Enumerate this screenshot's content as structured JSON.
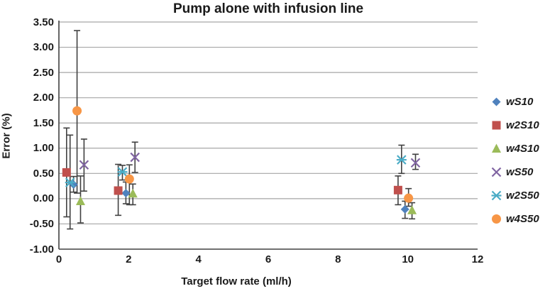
{
  "chart_data": {
    "type": "scatter",
    "title": "Pump alone with infusion line",
    "xlabel": "Target flow rate (ml/h)",
    "ylabel": "Error (%)",
    "xlim": [
      0,
      12
    ],
    "ylim": [
      -1.0,
      3.5
    ],
    "x_ticks": [
      "0",
      "2",
      "4",
      "6",
      "8",
      "10",
      "12"
    ],
    "y_ticks": [
      "3.50",
      "3.00",
      "2.50",
      "2.00",
      "1.50",
      "1.00",
      "0.50",
      "0.00",
      "-0.50",
      "-1.00"
    ],
    "grid": "horizontal-only",
    "legend_position": "right",
    "gridline_color": "#a6a6a6",
    "axis_color": "#404040",
    "error_bar_color": "#404040",
    "series": [
      {
        "name": "wS10",
        "marker": "diamond",
        "color": "#4F81BD",
        "points": [
          {
            "x": 0.42,
            "y": 0.28,
            "lo": 0.13,
            "hi": 0.44
          },
          {
            "x": 1.92,
            "y": 0.11,
            "lo": -0.1,
            "hi": 0.33
          },
          {
            "x": 9.92,
            "y": -0.21,
            "lo": -0.39,
            "hi": -0.05
          }
        ]
      },
      {
        "name": "w2S10",
        "marker": "square",
        "color": "#C0504D",
        "points": [
          {
            "x": 0.22,
            "y": 0.52,
            "lo": -0.36,
            "hi": 1.4
          },
          {
            "x": 1.7,
            "y": 0.16,
            "lo": -0.33,
            "hi": 0.68
          },
          {
            "x": 9.72,
            "y": 0.17,
            "lo": -0.12,
            "hi": 0.45
          }
        ]
      },
      {
        "name": "w4S10",
        "marker": "triangle",
        "color": "#9BBB59",
        "points": [
          {
            "x": 0.62,
            "y": -0.05,
            "lo": -0.48,
            "hi": 0.45
          },
          {
            "x": 2.12,
            "y": 0.1,
            "lo": -0.12,
            "hi": 0.29
          },
          {
            "x": 10.12,
            "y": -0.23,
            "lo": -0.4,
            "hi": -0.08
          }
        ]
      },
      {
        "name": "wS50",
        "marker": "x",
        "color": "#8064A2",
        "points": [
          {
            "x": 0.72,
            "y": 0.67,
            "lo": 0.15,
            "hi": 1.18
          },
          {
            "x": 2.18,
            "y": 0.82,
            "lo": 0.52,
            "hi": 1.12
          },
          {
            "x": 10.22,
            "y": 0.71,
            "lo": 0.58,
            "hi": 0.88
          }
        ]
      },
      {
        "name": "w2S50",
        "marker": "star",
        "color": "#4BACC6",
        "points": [
          {
            "x": 0.32,
            "y": 0.32,
            "lo": -0.6,
            "hi": 1.26
          },
          {
            "x": 1.82,
            "y": 0.53,
            "lo": 0.37,
            "hi": 0.66
          },
          {
            "x": 9.82,
            "y": 0.77,
            "lo": 0.5,
            "hi": 1.06
          }
        ]
      },
      {
        "name": "w4S50",
        "marker": "circle",
        "color": "#F79646",
        "points": [
          {
            "x": 0.52,
            "y": 1.74,
            "lo": 0.11,
            "hi": 3.33
          },
          {
            "x": 2.02,
            "y": 0.39,
            "lo": -0.12,
            "hi": 0.67
          },
          {
            "x": 10.02,
            "y": 0.01,
            "lo": -0.15,
            "hi": 0.2
          }
        ]
      }
    ]
  }
}
